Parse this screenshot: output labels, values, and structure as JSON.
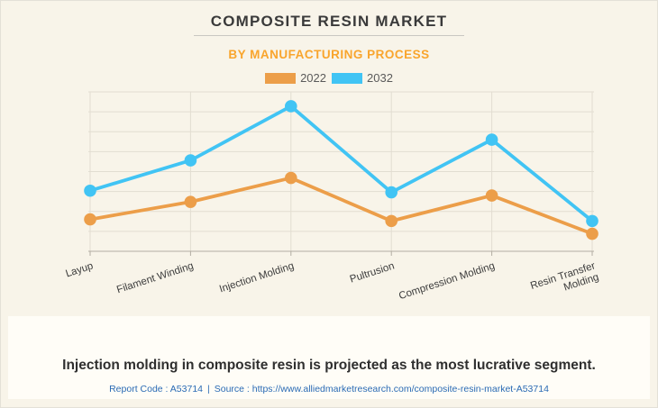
{
  "header": {
    "title": "COMPOSITE RESIN MARKET",
    "subtitle": "BY MANUFACTURING PROCESS"
  },
  "legend": [
    {
      "label": "2022",
      "color": "#ec9e49"
    },
    {
      "label": "2032",
      "color": "#41c4f4"
    }
  ],
  "chart_data": {
    "type": "line",
    "title": "COMPOSITE RESIN MARKET",
    "subtitle": "BY MANUFACTURING PROCESS",
    "categories": [
      "Layup",
      "Filament Winding",
      "Injection Molding",
      "Pultrusion",
      "Compression Molding",
      "Resin Transfer Molding"
    ],
    "category_label_lines": [
      [
        "Layup"
      ],
      [
        "Filament Winding"
      ],
      [
        "Injection Molding"
      ],
      [
        "Pultrusion"
      ],
      [
        "Compression Molding"
      ],
      [
        "Resin Transfer",
        "Molding"
      ]
    ],
    "series": [
      {
        "name": "2022",
        "color": "#ec9e49",
        "values": [
          20,
          31,
          46,
          19,
          35,
          11
        ]
      },
      {
        "name": "2032",
        "color": "#41c4f4",
        "values": [
          38,
          57,
          91,
          37,
          70,
          19
        ]
      }
    ],
    "xlabel": "",
    "ylabel": "",
    "ylim": [
      0,
      100
    ],
    "grid": true,
    "legend_position": "top"
  },
  "footnote": {
    "statement": "Injection molding in composite resin is projected as the most lucrative segment.",
    "report_code": "Report Code : A53714",
    "separator": "|",
    "source_prefix": "Source :",
    "source_url": "https://www.alliedmarketresearch.com/composite-resin-market-A53714"
  },
  "colors": {
    "background": "#f8f4e9",
    "panel_background": "#fffdf7",
    "title_text": "#3a3a3a",
    "subtitle_orange": "#f9a52d",
    "series_2022_orange": "#ec9e49",
    "series_2032_blue": "#41c4f4",
    "grid_line": "#e2ddd1",
    "axis_line": "#b2ada2",
    "category_label": "#3c3c3c",
    "legend_text": "#5a5a5a",
    "statement_text": "#2f2f2f",
    "footer_link_blue": "#2b6bb4"
  }
}
